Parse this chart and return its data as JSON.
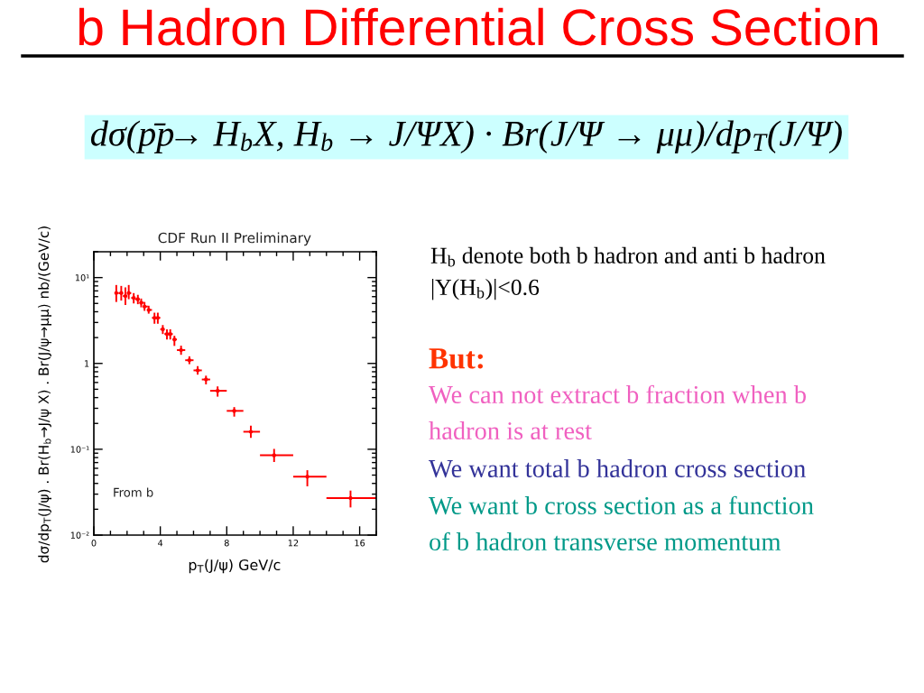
{
  "chart_data": {
    "type": "scatter",
    "title": "b Hadron Differential Cross Section",
    "subtitle": "dσ(pp̄ → H$_{b}$X, H$_{b}$ → J/ΨX) · Br(J/Ψ → μμ)/dp$_{T}$(J/Ψ)",
    "xlabel": "p$_{T}$(J/ψ) GeV/c",
    "ylabel": "dσ/dp$_{T}$(J/ψ) . Br(H$_{b}$→J/ψ X) . Br(J/ψ→μμ) nb/(GeV/c)",
    "annotations": [
      "CDF Run II Preliminary",
      "From b",
      "H$_{b}$ denote both b hadron and anti b hadron",
      "|Y(H$_{b}$)|<0.6",
      "But:",
      "We can not extract b fraction when b\nhadron is at rest",
      "We want total b hadron cross section",
      "We want b cross section as a function\nof b hadron transverse momentum"
    ],
    "x": [
      1.35,
      1.65,
      1.9,
      2.1,
      2.4,
      2.65,
      2.85,
      3.05,
      3.3,
      3.65,
      3.85,
      4.15,
      4.4,
      4.6,
      4.85,
      5.25,
      5.75,
      6.25,
      6.75,
      7.45,
      8.45,
      9.45,
      10.85,
      12.85,
      15.45
    ],
    "series": [
      {
        "color": "#ff0000",
        "values": [
          6.6,
          6.6,
          6.1,
          6.6,
          5.8,
          5.6,
          5.1,
          4.6,
          4.2,
          3.4,
          3.4,
          2.5,
          2.2,
          2.2,
          1.9,
          1.43,
          1.09,
          0.83,
          0.65,
          0.48,
          0.28,
          0.16,
          0.085,
          0.048,
          0.027
        ],
        "errors": [
          [
            5.2,
            8.2
          ],
          [
            5.4,
            8.0
          ],
          [
            4.8,
            7.7
          ],
          [
            5.6,
            8.2
          ],
          [
            5.0,
            6.6
          ],
          [
            4.9,
            6.3
          ],
          [
            4.5,
            5.7
          ],
          [
            4.1,
            5.2
          ],
          [
            3.8,
            4.7
          ],
          [
            2.9,
            3.9
          ],
          [
            2.9,
            3.9
          ],
          [
            2.2,
            2.8
          ],
          [
            1.9,
            2.5
          ],
          [
            1.9,
            2.5
          ],
          [
            1.6,
            2.1
          ],
          [
            1.26,
            1.61
          ],
          [
            0.98,
            1.21
          ],
          [
            0.74,
            0.93
          ],
          [
            0.57,
            0.72
          ],
          [
            0.41,
            0.54
          ],
          [
            0.24,
            0.31
          ],
          [
            0.136,
            0.188
          ],
          [
            0.071,
            0.101
          ],
          [
            0.037,
            0.057
          ],
          [
            0.021,
            0.033
          ]
        ],
        "xerrors": [
          [
            1.25,
            1.5
          ],
          [
            1.5,
            1.75
          ],
          [
            1.75,
            2.0
          ],
          [
            2.0,
            2.25
          ],
          [
            2.25,
            2.5
          ],
          [
            2.5,
            2.75
          ],
          [
            2.75,
            3.0
          ],
          [
            3.0,
            3.25
          ],
          [
            3.25,
            3.5
          ],
          [
            3.5,
            3.75
          ],
          [
            3.75,
            4.0
          ],
          [
            4.0,
            4.25
          ],
          [
            4.25,
            4.5
          ],
          [
            4.5,
            4.75
          ],
          [
            4.75,
            5.0
          ],
          [
            5.0,
            5.5
          ],
          [
            5.5,
            6.0
          ],
          [
            6.0,
            6.5
          ],
          [
            6.5,
            7.0
          ],
          [
            7,
            8
          ],
          [
            8,
            9
          ],
          [
            9,
            10
          ],
          [
            10,
            12
          ],
          [
            12,
            14
          ],
          [
            14,
            17
          ]
        ]
      }
    ],
    "xlim": [
      0,
      17
    ],
    "xticks": [
      0,
      4,
      8,
      12,
      16
    ],
    "ylim": [
      0.01,
      20
    ],
    "yticks": [
      {
        "value": 0.01,
        "label": "10⁻²"
      },
      {
        "value": 0.1,
        "label": "10⁻¹"
      },
      1,
      {
        "value": 10,
        "label": "10¹"
      }
    ],
    "log": "y",
    "marker": "circle"
  }
}
